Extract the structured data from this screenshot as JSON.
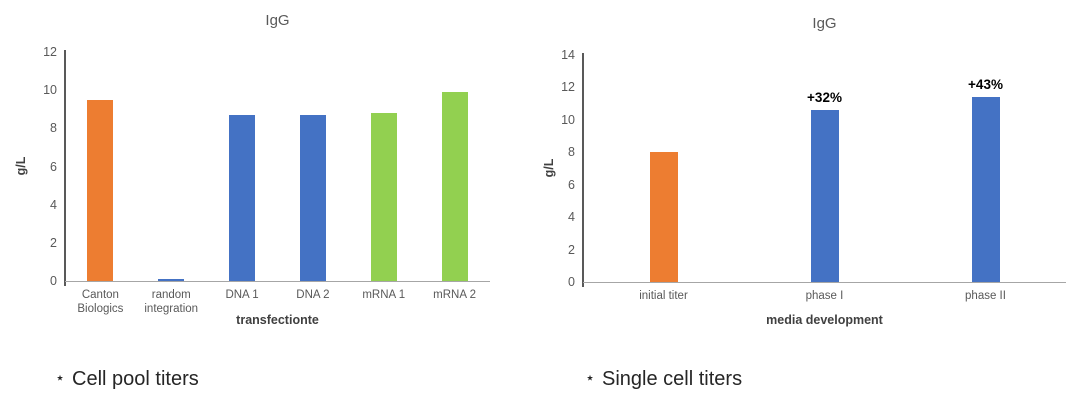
{
  "chart_data": [
    {
      "type": "bar",
      "title": "IgG",
      "ylabel": "g/L",
      "xlabel": "transfectionte",
      "categories": [
        "Canton Biologics",
        "random integration",
        "DNA 1",
        "DNA 2",
        "mRNA 1",
        "mRNA 2"
      ],
      "values": [
        9.5,
        0.1,
        8.7,
        8.7,
        8.8,
        9.9
      ],
      "bar_colors": [
        "#ED7D31",
        "#4472C4",
        "#4472C4",
        "#4472C4",
        "#92D050",
        "#92D050"
      ],
      "data_labels": [
        "",
        "",
        "",
        "",
        "",
        ""
      ],
      "ylim": [
        0,
        12
      ],
      "ytick_step": 2,
      "grid": false,
      "legend": false
    },
    {
      "type": "bar",
      "title": "IgG",
      "ylabel": "g/L",
      "xlabel": "media development",
      "categories": [
        "initial titer",
        "phase I",
        "phase II"
      ],
      "values": [
        8.0,
        10.6,
        11.4
      ],
      "bar_colors": [
        "#ED7D31",
        "#4472C4",
        "#4472C4"
      ],
      "data_labels": [
        "",
        "+32%",
        "+43%"
      ],
      "ylim": [
        0,
        14
      ],
      "ytick_step": 2,
      "grid": false,
      "legend": false
    }
  ],
  "captions": {
    "left": {
      "bullet": "⋆",
      "text": "Cell pool titers"
    },
    "right": {
      "bullet": "⋆",
      "text": "Single cell titers"
    }
  },
  "colors": {
    "orange": "#ED7D31",
    "blue": "#4472C4",
    "green": "#92D050",
    "axis_text": "#595959"
  }
}
